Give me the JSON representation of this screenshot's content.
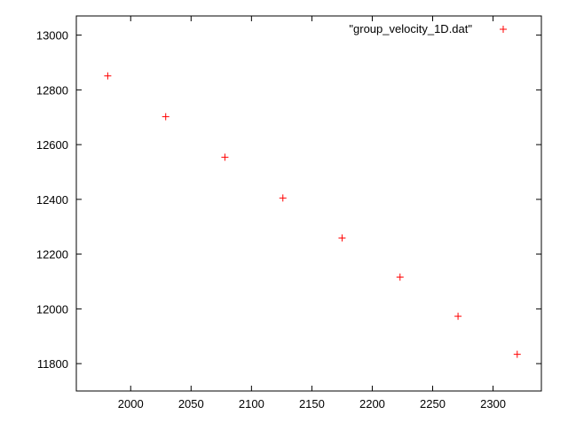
{
  "chart_data": {
    "type": "scatter",
    "title": "",
    "xlabel": "",
    "ylabel": "",
    "xlim": [
      1955,
      2340
    ],
    "ylim": [
      11700,
      13070
    ],
    "x_ticks": [
      2000,
      2050,
      2100,
      2150,
      2200,
      2250,
      2300
    ],
    "y_ticks": [
      11800,
      12000,
      12200,
      12400,
      12600,
      12800,
      13000
    ],
    "x_tick_labels": [
      "2000",
      "2050",
      "2100",
      "2150",
      "2200",
      "2250",
      "2300"
    ],
    "y_tick_labels": [
      "11800",
      "12000",
      "12200",
      "12400",
      "12600",
      "12800",
      "13000"
    ],
    "grid": false,
    "legend_position": "top-right",
    "marker": "+",
    "series": [
      {
        "name": "\"group_velocity_1D.dat\"",
        "color": "#ff0000",
        "x": [
          1981,
          2029,
          2078,
          2126,
          2175,
          2223,
          2271,
          2320
        ],
        "y": [
          12851,
          12702,
          12554,
          12405,
          12259,
          12116,
          11973,
          11834
        ]
      }
    ]
  }
}
